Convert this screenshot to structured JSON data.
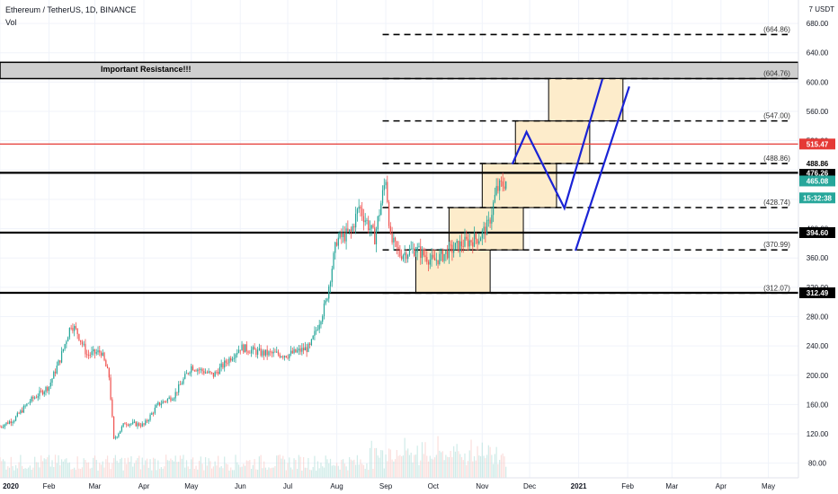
{
  "header": {
    "symbol": "Ethereum / TetherUS, 1D, BINANCE",
    "volume_label": "Vol",
    "currency": "USDT",
    "currency_marker": "7"
  },
  "annotation": "Important Resistance!!!",
  "colors": {
    "up": "#26a69a",
    "down": "#ef5350",
    "resistance_red": "#e53935",
    "projection": "#1a23d6",
    "box_fill": "#fdeccb",
    "zone_fill": "#cfcfcf",
    "current_price": "#26a69a",
    "countdown": "#26a69a"
  },
  "chart_data": {
    "type": "candlestick",
    "title": "Ethereum / TetherUS, 1D, BINANCE",
    "x_range": [
      "2020-01-01",
      "2021-05-20"
    ],
    "y_range": [
      60,
      712
    ],
    "y_ticks": [
      80,
      120,
      160,
      200,
      240,
      280,
      320,
      360,
      400,
      440,
      480,
      520,
      560,
      600,
      640,
      680
    ],
    "x_ticks": [
      {
        "label": "2020",
        "date": "2020-01-01"
      },
      {
        "label": "Feb",
        "date": "2020-02-01"
      },
      {
        "label": "Mar",
        "date": "2020-03-01"
      },
      {
        "label": "Apr",
        "date": "2020-04-01"
      },
      {
        "label": "May",
        "date": "2020-05-01"
      },
      {
        "label": "Jun",
        "date": "2020-06-01"
      },
      {
        "label": "Jul",
        "date": "2020-07-01"
      },
      {
        "label": "Aug",
        "date": "2020-08-01"
      },
      {
        "label": "Sep",
        "date": "2020-09-01"
      },
      {
        "label": "Oct",
        "date": "2020-10-01"
      },
      {
        "label": "Nov",
        "date": "2020-11-01"
      },
      {
        "label": "Dec",
        "date": "2020-12-01"
      },
      {
        "label": "2021",
        "date": "2021-01-01"
      },
      {
        "label": "Feb",
        "date": "2021-02-01"
      },
      {
        "label": "Mar",
        "date": "2021-03-01"
      },
      {
        "label": "Apr",
        "date": "2021-04-01"
      },
      {
        "label": "May",
        "date": "2021-05-01"
      }
    ],
    "price_path": [
      [
        "2020-01-01",
        130
      ],
      [
        "2020-01-10",
        140
      ],
      [
        "2020-01-20",
        165
      ],
      [
        "2020-02-01",
        185
      ],
      [
        "2020-02-08",
        222
      ],
      [
        "2020-02-15",
        270
      ],
      [
        "2020-02-19",
        258
      ],
      [
        "2020-02-25",
        228
      ],
      [
        "2020-03-05",
        232
      ],
      [
        "2020-03-10",
        198
      ],
      [
        "2020-03-13",
        112
      ],
      [
        "2020-03-20",
        135
      ],
      [
        "2020-04-01",
        132
      ],
      [
        "2020-04-10",
        160
      ],
      [
        "2020-04-20",
        172
      ],
      [
        "2020-05-01",
        212
      ],
      [
        "2020-05-15",
        200
      ],
      [
        "2020-06-01",
        238
      ],
      [
        "2020-06-15",
        230
      ],
      [
        "2020-07-01",
        228
      ],
      [
        "2020-07-15",
        238
      ],
      [
        "2020-07-25",
        298
      ],
      [
        "2020-08-01",
        385
      ],
      [
        "2020-08-10",
        395
      ],
      [
        "2020-08-15",
        430
      ],
      [
        "2020-08-25",
        388
      ],
      [
        "2020-09-01",
        470
      ],
      [
        "2020-09-04",
        385
      ],
      [
        "2020-09-10",
        365
      ],
      [
        "2020-09-20",
        372
      ],
      [
        "2020-10-01",
        355
      ],
      [
        "2020-10-10",
        368
      ],
      [
        "2020-10-20",
        380
      ],
      [
        "2020-10-30",
        388
      ],
      [
        "2020-11-05",
        405
      ],
      [
        "2020-11-10",
        452
      ],
      [
        "2020-11-16",
        465
      ]
    ],
    "volume_scale_max": 100,
    "horizontal_levels": [
      {
        "price": 515.47,
        "label": "515.47",
        "style": "solid",
        "color": "#e53935"
      },
      {
        "price": 476.26,
        "label": "476.26",
        "style": "solid",
        "color": "#000000"
      },
      {
        "price": 394.6,
        "label": "394.60",
        "style": "solid",
        "color": "#000000"
      },
      {
        "price": 312.49,
        "label": "312.49",
        "style": "solid",
        "color": "#000000"
      }
    ],
    "dashed_levels": [
      {
        "price": 664.86,
        "label": "(664.86)"
      },
      {
        "price": 604.76,
        "label": "(604.76)"
      },
      {
        "price": 547.0,
        "label": "(547.00)"
      },
      {
        "price": 488.86,
        "label": "(488.86)"
      },
      {
        "price": 428.74,
        "label": "(428.74)"
      },
      {
        "price": 370.99,
        "label": "(370.99)"
      },
      {
        "price": 312.07,
        "label": "(312.07)"
      }
    ],
    "resistance_zone": {
      "low": 604.76,
      "high": 627
    },
    "step_boxes": [
      {
        "start": "2020-09-20",
        "end": "2020-11-06",
        "low": 312.07,
        "high": 370.99
      },
      {
        "start": "2020-10-11",
        "end": "2020-11-27",
        "low": 370.99,
        "high": 428.74
      },
      {
        "start": "2020-11-01",
        "end": "2020-12-18",
        "low": 428.74,
        "high": 488.86
      },
      {
        "start": "2020-11-22",
        "end": "2021-01-08",
        "low": 488.86,
        "high": 547.0
      },
      {
        "start": "2020-12-13",
        "end": "2021-01-29",
        "low": 547.0,
        "high": 604.76
      }
    ],
    "projection_path_1": [
      [
        "2020-11-20",
        488
      ],
      [
        "2020-11-29",
        532
      ],
      [
        "2020-12-23",
        428
      ],
      [
        "2021-01-16",
        604
      ]
    ],
    "projection_path_2": [
      [
        "2020-12-30",
        370
      ],
      [
        "2021-02-02",
        594
      ]
    ],
    "current_price": {
      "price": 465.08,
      "label": "465.08"
    },
    "countdown": {
      "price": 442,
      "label": "15:32:38"
    }
  }
}
